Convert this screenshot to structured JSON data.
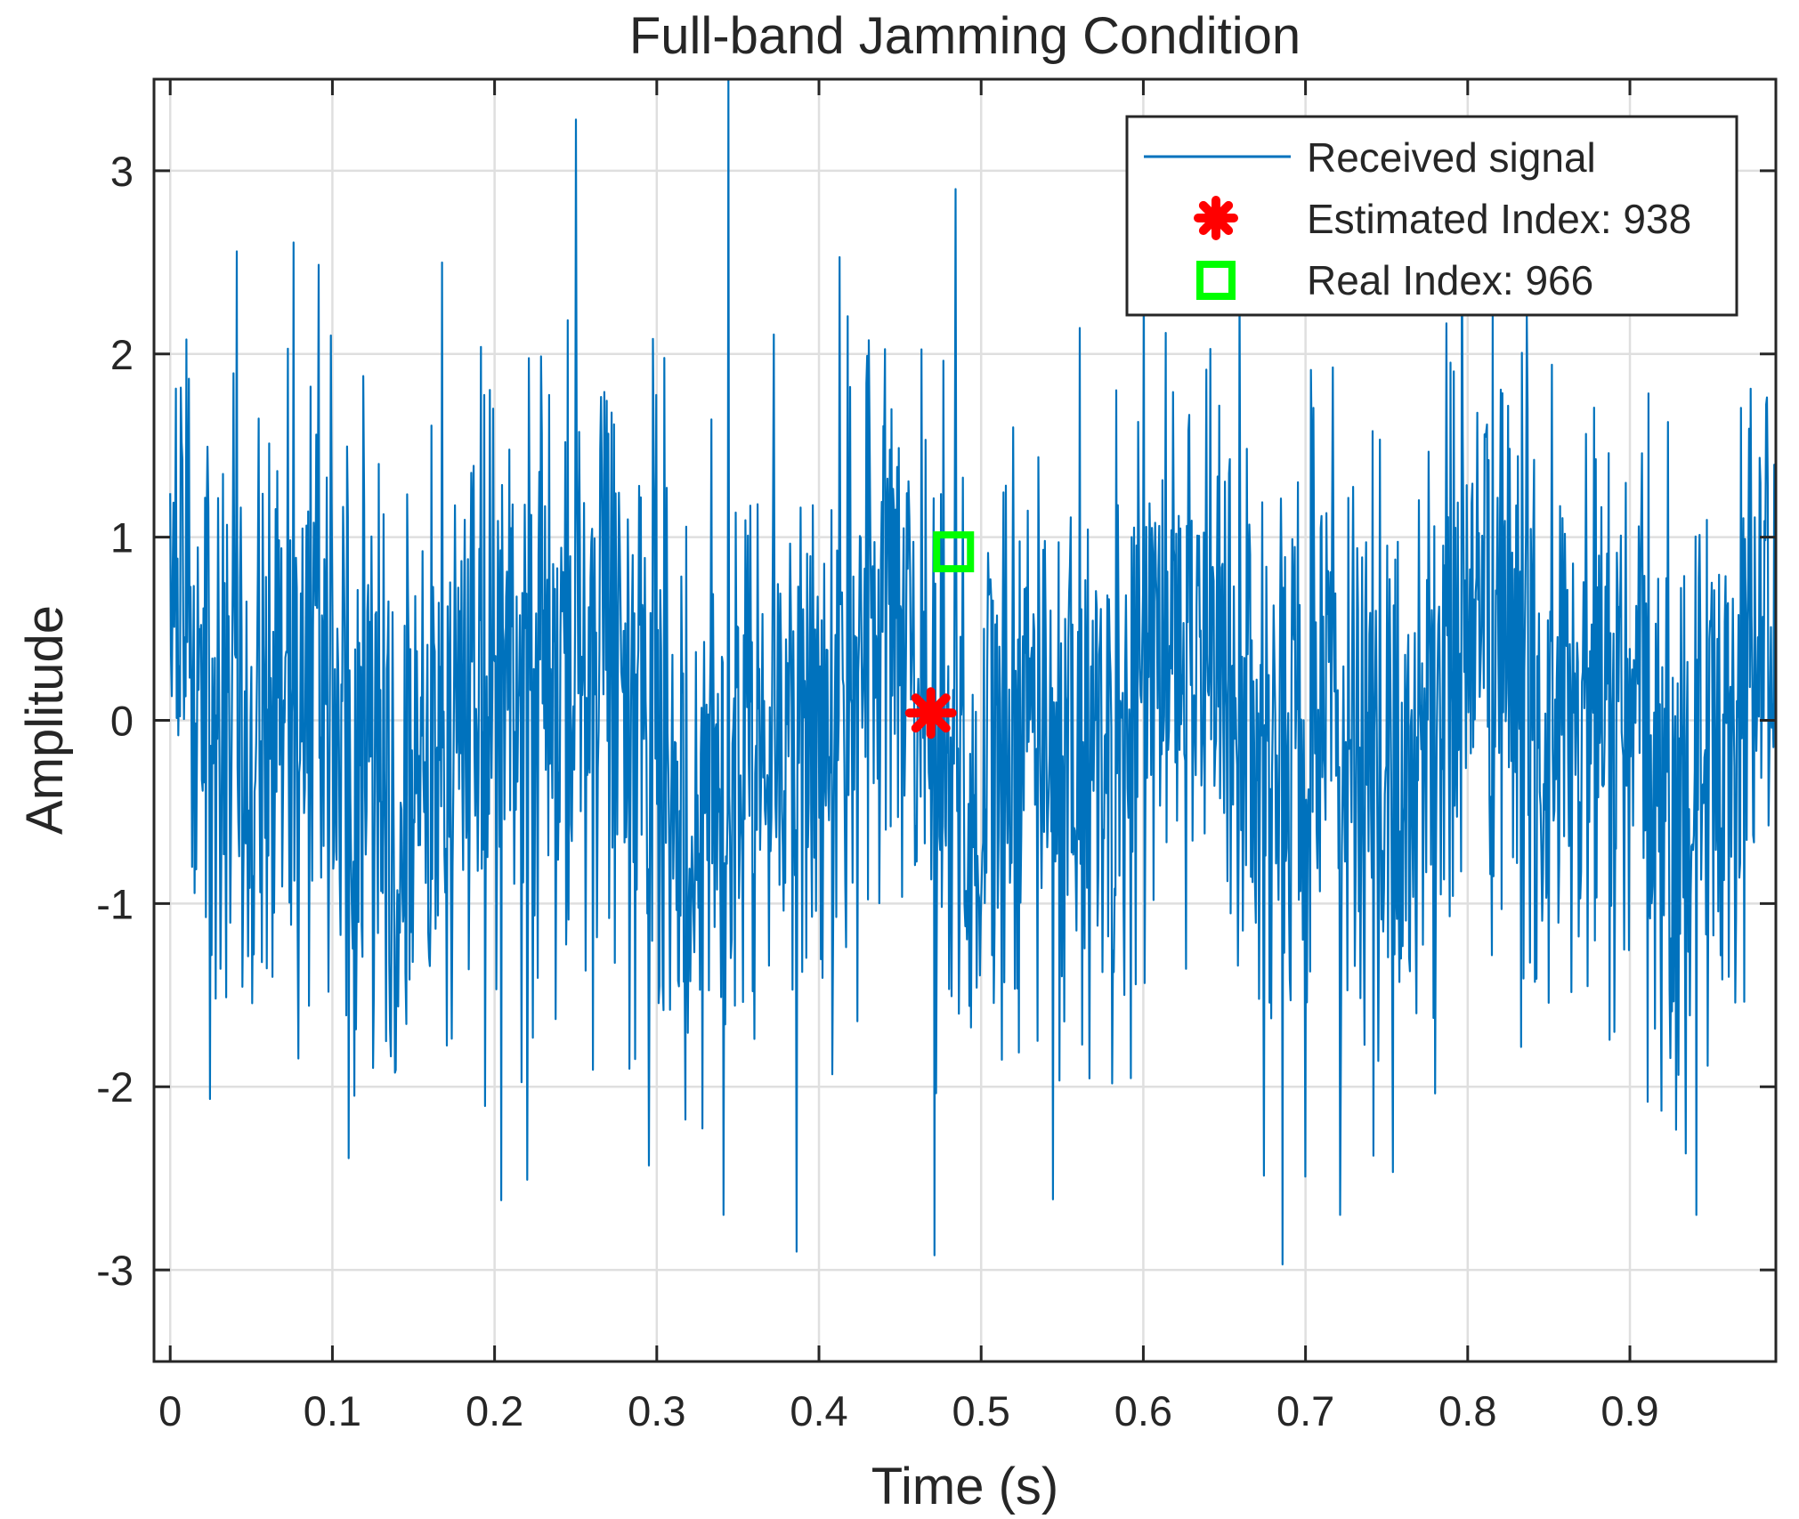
{
  "chart_data": {
    "type": "line",
    "title": "Full-band Jamming Condition",
    "xlabel": "Time (s)",
    "ylabel": "Amplitude",
    "xlim": [
      -0.01,
      0.99
    ],
    "ylim": [
      -3.5,
      3.5
    ],
    "xticks": [
      0,
      0.1,
      0.2,
      0.3,
      0.4,
      0.5,
      0.6,
      0.7,
      0.8,
      0.9
    ],
    "xtick_labels": [
      "0",
      "0.1",
      "0.2",
      "0.3",
      "0.4",
      "0.5",
      "0.6",
      "0.7",
      "0.8",
      "0.9"
    ],
    "yticks": [
      3,
      2,
      1,
      0,
      -1,
      -2,
      -3
    ],
    "ytick_labels": [
      "3",
      "2",
      "1",
      "0",
      "-1",
      "-2",
      "-3"
    ],
    "grid": true,
    "legend_position": "top-right",
    "series": [
      {
        "name": "Received signal",
        "color": "#0072BD",
        "style": "line",
        "x_range": [
          0,
          0.99
        ],
        "sample_count": 1980,
        "amplitude_envelope": [
          -3,
          3.5
        ],
        "description_peaks": [
          {
            "x": 0.344,
            "y": 3.5
          },
          {
            "x": 0.25,
            "y": 3.28
          },
          {
            "x": 0.484,
            "y": 2.9
          },
          {
            "x": 0.204,
            "y": -2.62
          },
          {
            "x": 0.386,
            "y": -2.9
          },
          {
            "x": 0.471,
            "y": -2.92
          },
          {
            "x": 0.686,
            "y": -2.97
          },
          {
            "x": 0.11,
            "y": -2.39
          },
          {
            "x": 0.295,
            "y": -2.43
          },
          {
            "x": 0.041,
            "y": 2.56
          }
        ]
      },
      {
        "name": "Estimated Index: 938",
        "color": "#FF0000",
        "marker": "asterisk",
        "points": [
          {
            "x": 0.469,
            "y": 0.04
          }
        ]
      },
      {
        "name": "Real Index: 966",
        "color": "#00FF00",
        "marker": "square",
        "points": [
          {
            "x": 0.483,
            "y": 0.92
          }
        ]
      }
    ],
    "legend": [
      "Received signal",
      "Estimated Index: 938",
      "Real Index: 966"
    ]
  }
}
